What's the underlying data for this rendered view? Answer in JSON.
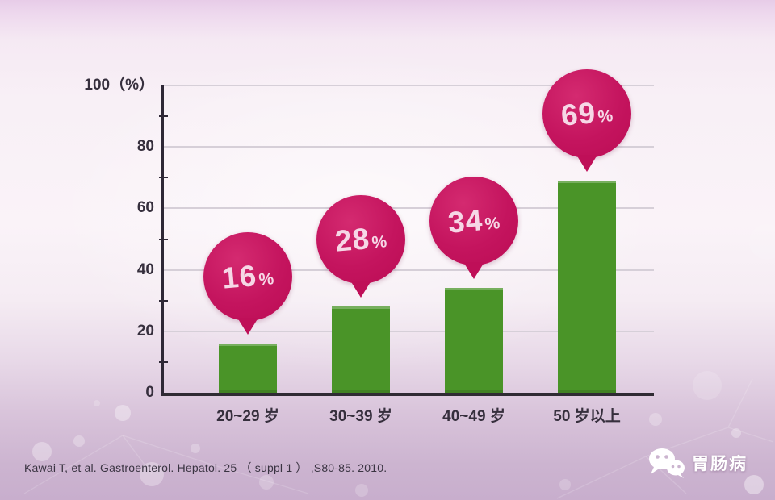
{
  "chart_data": {
    "type": "bar",
    "categories": [
      "20~29 岁",
      "30~39 岁",
      "40~49 岁",
      "50 岁以上"
    ],
    "values": [
      16,
      28,
      34,
      69
    ],
    "value_labels": [
      "16",
      "28",
      "34",
      "69"
    ],
    "value_suffix": "%",
    "title": "",
    "xlabel": "",
    "ylabel": "(%)",
    "ylim": [
      0,
      100
    ],
    "y_ticks": [
      0,
      20,
      40,
      60,
      80,
      100
    ],
    "y_tick_labels": [
      "0",
      "20",
      "40",
      "60",
      "80",
      "100（%）"
    ],
    "y_minor_ticks": [
      10,
      30,
      50,
      70,
      90
    ],
    "grid": true,
    "legend": null,
    "colors": {
      "bar": "#4a9428",
      "bubble": "#c4145e",
      "bubble_text": "#f6d7e6",
      "axis": "#2e2836",
      "gridline": "#d6cfd8",
      "tick_label": "#362f3d"
    }
  },
  "citation": "Kawai T, et al. Gastroenterol. Hepatol. 25 （ suppl 1 ） ,S80-85. 2010.",
  "watermark": {
    "label": "胃肠病",
    "icon": "wechat-icon"
  }
}
